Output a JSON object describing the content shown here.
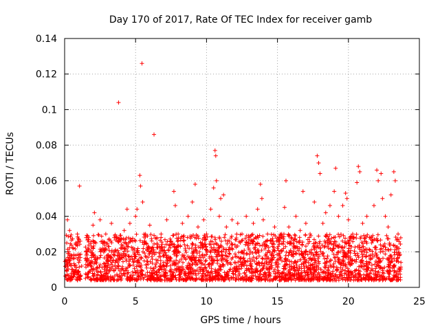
{
  "chart_data": {
    "type": "scatter",
    "title": "Day 170 of 2017, Rate Of TEC Index for receiver gamb",
    "xlabel": "GPS time / hours",
    "ylabel": "ROTI / TECUs",
    "xlim": [
      0,
      25
    ],
    "ylim": [
      0,
      0.14
    ],
    "xticks": [
      "0",
      "5",
      "10",
      "15",
      "20",
      "25"
    ],
    "yticks": [
      "0",
      "0.02",
      "0.04",
      "0.06",
      "0.08",
      "0.1",
      "0.12",
      "0.14"
    ],
    "grid": true,
    "marker": "plus",
    "color": "#ff0000",
    "series": [
      {
        "name": "ROTI",
        "points": [
          [
            0.1,
            0.012
          ],
          [
            0.15,
            0.025
          ],
          [
            0.2,
            0.038
          ],
          [
            0.3,
            0.02
          ],
          [
            0.35,
            0.032
          ],
          [
            0.4,
            0.016
          ],
          [
            0.5,
            0.01
          ],
          [
            0.6,
            0.022
          ],
          [
            0.7,
            0.008
          ],
          [
            0.8,
            0.018
          ],
          [
            0.9,
            0.03
          ],
          [
            1.0,
            0.014
          ],
          [
            1.05,
            0.057
          ],
          [
            1.1,
            0.026
          ],
          [
            1.2,
            0.012
          ],
          [
            1.5,
            0.02
          ],
          [
            1.7,
            0.028
          ],
          [
            1.9,
            0.018
          ],
          [
            2.0,
            0.035
          ],
          [
            2.1,
            0.042
          ],
          [
            2.2,
            0.025
          ],
          [
            2.3,
            0.016
          ],
          [
            2.5,
            0.038
          ],
          [
            2.7,
            0.022
          ],
          [
            2.9,
            0.03
          ],
          [
            3.0,
            0.015
          ],
          [
            3.3,
            0.036
          ],
          [
            3.5,
            0.028
          ],
          [
            3.7,
            0.018
          ],
          [
            3.8,
            0.104
          ],
          [
            4.0,
            0.024
          ],
          [
            4.2,
            0.032
          ],
          [
            4.4,
            0.044
          ],
          [
            4.6,
            0.036
          ],
          [
            4.8,
            0.026
          ],
          [
            5.0,
            0.04
          ],
          [
            5.1,
            0.044
          ],
          [
            5.3,
            0.063
          ],
          [
            5.35,
            0.057
          ],
          [
            5.45,
            0.126
          ],
          [
            5.5,
            0.048
          ],
          [
            5.7,
            0.03
          ],
          [
            5.9,
            0.022
          ],
          [
            6.0,
            0.035
          ],
          [
            6.2,
            0.02
          ],
          [
            6.3,
            0.086
          ],
          [
            6.5,
            0.028
          ],
          [
            6.8,
            0.03
          ],
          [
            7.0,
            0.018
          ],
          [
            7.2,
            0.038
          ],
          [
            7.5,
            0.026
          ],
          [
            7.7,
            0.054
          ],
          [
            7.8,
            0.046
          ],
          [
            8.0,
            0.03
          ],
          [
            8.3,
            0.036
          ],
          [
            8.5,
            0.022
          ],
          [
            8.7,
            0.04
          ],
          [
            9.0,
            0.048
          ],
          [
            9.2,
            0.058
          ],
          [
            9.4,
            0.034
          ],
          [
            9.6,
            0.025
          ],
          [
            9.8,
            0.038
          ],
          [
            10.0,
            0.03
          ],
          [
            10.3,
            0.044
          ],
          [
            10.5,
            0.056
          ],
          [
            10.6,
            0.077
          ],
          [
            10.65,
            0.074
          ],
          [
            10.7,
            0.06
          ],
          [
            10.9,
            0.04
          ],
          [
            11.0,
            0.05
          ],
          [
            11.2,
            0.052
          ],
          [
            11.4,
            0.034
          ],
          [
            11.6,
            0.026
          ],
          [
            11.8,
            0.038
          ],
          [
            12.0,
            0.024
          ],
          [
            12.2,
            0.036
          ],
          [
            12.5,
            0.03
          ],
          [
            12.8,
            0.04
          ],
          [
            13.0,
            0.028
          ],
          [
            13.3,
            0.036
          ],
          [
            13.6,
            0.044
          ],
          [
            13.8,
            0.058
          ],
          [
            13.9,
            0.05
          ],
          [
            14.0,
            0.038
          ],
          [
            14.3,
            0.03
          ],
          [
            14.5,
            0.026
          ],
          [
            14.8,
            0.034
          ],
          [
            15.0,
            0.022
          ],
          [
            15.3,
            0.03
          ],
          [
            15.5,
            0.045
          ],
          [
            15.6,
            0.06
          ],
          [
            15.8,
            0.034
          ],
          [
            16.0,
            0.028
          ],
          [
            16.3,
            0.04
          ],
          [
            16.6,
            0.032
          ],
          [
            16.8,
            0.054
          ],
          [
            17.0,
            0.036
          ],
          [
            17.3,
            0.03
          ],
          [
            17.6,
            0.048
          ],
          [
            17.8,
            0.074
          ],
          [
            17.9,
            0.07
          ],
          [
            18.0,
            0.064
          ],
          [
            18.2,
            0.036
          ],
          [
            18.4,
            0.042
          ],
          [
            18.7,
            0.046
          ],
          [
            19.0,
            0.054
          ],
          [
            19.1,
            0.067
          ],
          [
            19.3,
            0.04
          ],
          [
            19.6,
            0.046
          ],
          [
            19.8,
            0.053
          ],
          [
            19.9,
            0.05
          ],
          [
            20.0,
            0.038
          ],
          [
            20.3,
            0.03
          ],
          [
            20.6,
            0.059
          ],
          [
            20.7,
            0.068
          ],
          [
            20.8,
            0.065
          ],
          [
            21.0,
            0.036
          ],
          [
            21.3,
            0.04
          ],
          [
            21.6,
            0.028
          ],
          [
            21.8,
            0.046
          ],
          [
            22.0,
            0.066
          ],
          [
            22.1,
            0.06
          ],
          [
            22.3,
            0.064
          ],
          [
            22.4,
            0.05
          ],
          [
            22.6,
            0.04
          ],
          [
            22.8,
            0.034
          ],
          [
            23.0,
            0.052
          ],
          [
            23.2,
            0.065
          ],
          [
            23.3,
            0.06
          ],
          [
            23.5,
            0.03
          ],
          [
            23.6,
            0.018
          ],
          [
            23.7,
            0.014
          ]
        ]
      }
    ]
  }
}
